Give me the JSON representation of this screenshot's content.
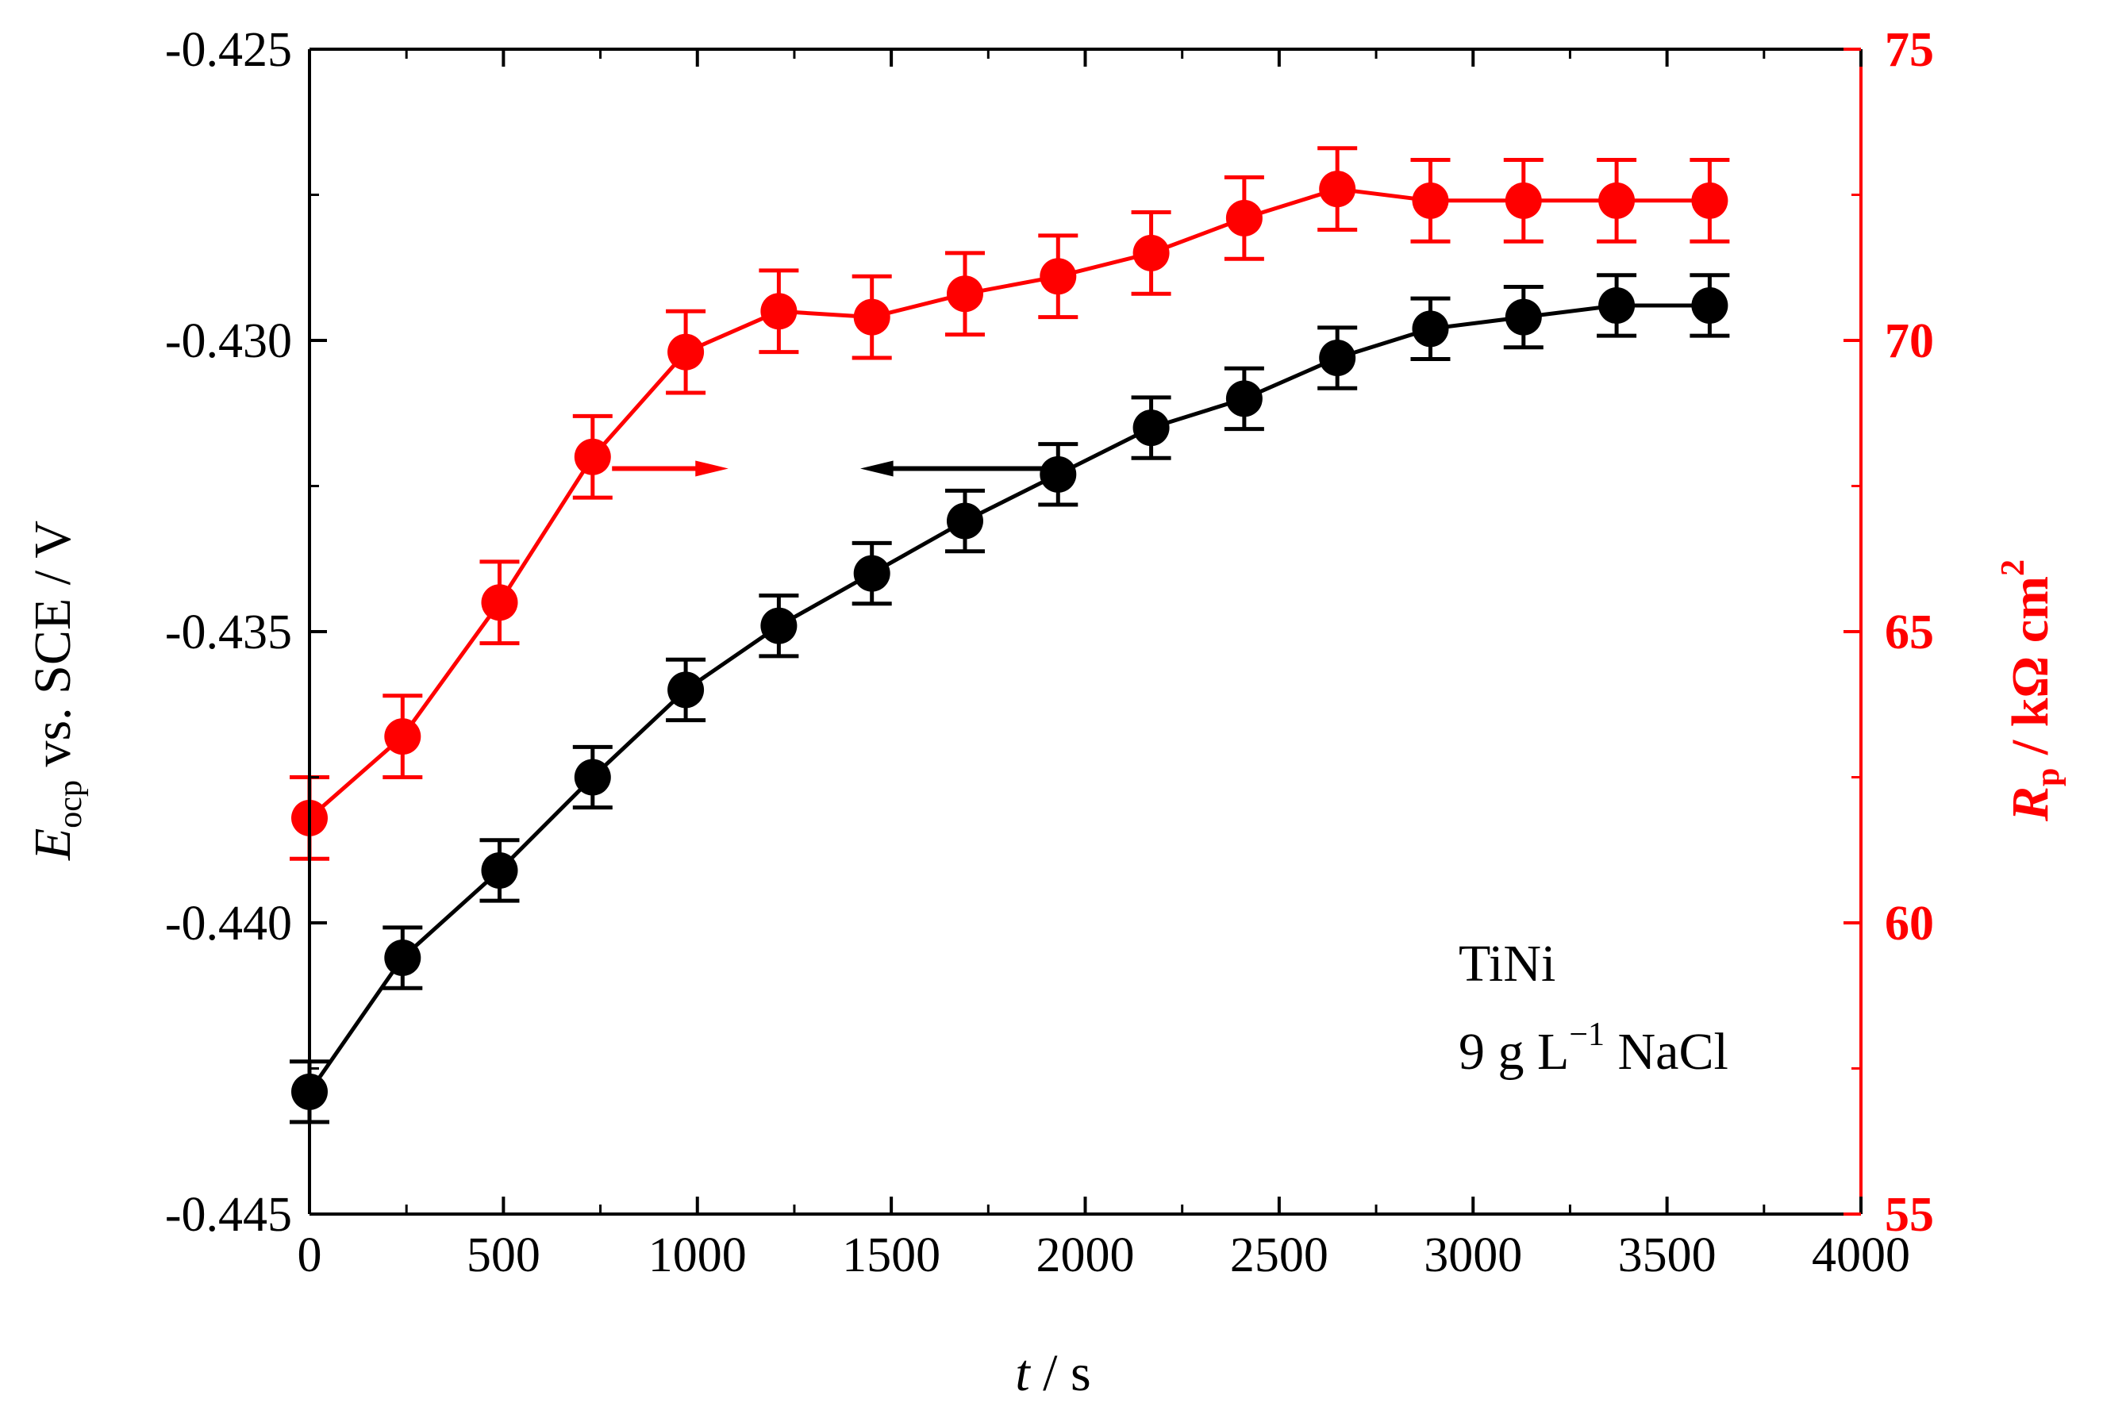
{
  "chart_data": {
    "type": "line",
    "title": "",
    "xlabel": {
      "italic": "t",
      "rest": " / s"
    },
    "ylabel_left": {
      "italic": "E",
      "sub": "ocp",
      "rest": " vs. SCE / V"
    },
    "ylabel_right": {
      "italic": "R",
      "sub": "p",
      "rest": " / kΩ cm",
      "sup": "2"
    },
    "xlim": [
      0,
      4000
    ],
    "ylim_left": [
      -0.445,
      -0.425
    ],
    "ylim_right": [
      55,
      75
    ],
    "x_ticks": [
      0,
      500,
      1000,
      1500,
      2000,
      2500,
      3000,
      3500,
      4000
    ],
    "y_left_ticks": [
      "-0.425",
      "-0.430",
      "-0.435",
      "-0.440",
      "-0.445"
    ],
    "y_left_tick_values": [
      -0.425,
      -0.43,
      -0.435,
      -0.44,
      -0.445
    ],
    "y_right_ticks": [
      "75",
      "70",
      "65",
      "60",
      "55"
    ],
    "y_right_tick_values": [
      75,
      70,
      65,
      60,
      55
    ],
    "annotation": {
      "line1": "TiNi",
      "line2_prefix": "9 g L",
      "line2_sup": "−1",
      "line2_suffix": " NaCl"
    },
    "series": [
      {
        "name": "Eocp",
        "axis": "left",
        "color": "#000000",
        "x": [
          0,
          240,
          490,
          730,
          970,
          1210,
          1450,
          1690,
          1930,
          2170,
          2410,
          2650,
          2890,
          3130,
          3370,
          3610
        ],
        "y": [
          -0.4429,
          -0.4406,
          -0.4391,
          -0.4375,
          -0.436,
          -0.4349,
          -0.434,
          -0.4331,
          -0.4323,
          -0.4315,
          -0.431,
          -0.4303,
          -0.4298,
          -0.4296,
          -0.4294,
          -0.4294
        ],
        "err": [
          0.00052,
          0.00052,
          0.00052,
          0.00052,
          0.00052,
          0.00052,
          0.00052,
          0.00052,
          0.00052,
          0.00052,
          0.00052,
          0.00052,
          0.00052,
          0.00052,
          0.00052,
          0.00052
        ],
        "arrow": {
          "from_x": 1950,
          "to_x": 1420,
          "y": -0.4322
        }
      },
      {
        "name": "Rp",
        "axis": "right",
        "color": "#ff0000",
        "x": [
          0,
          240,
          490,
          730,
          970,
          1210,
          1450,
          1690,
          1930,
          2170,
          2410,
          2650,
          2890,
          3130,
          3370,
          3610
        ],
        "y": [
          61.8,
          63.2,
          65.5,
          68.0,
          69.8,
          70.5,
          70.4,
          70.8,
          71.1,
          71.5,
          72.1,
          72.6,
          72.4,
          72.4,
          72.4,
          72.4
        ],
        "err": [
          0.7,
          0.7,
          0.7,
          0.7,
          0.7,
          0.7,
          0.7,
          0.7,
          0.7,
          0.7,
          0.7,
          0.7,
          0.7,
          0.7,
          0.7,
          0.7
        ],
        "arrow": {
          "from_x": 780,
          "to_x": 1080,
          "y": 67.8
        }
      }
    ]
  }
}
